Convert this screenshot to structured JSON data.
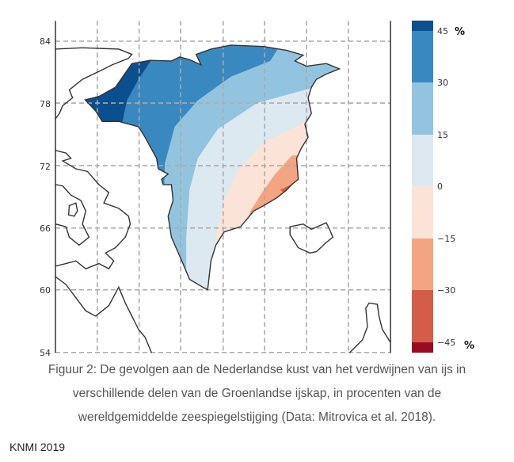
{
  "map": {
    "lat_ticks": [
      "84",
      "78",
      "72",
      "66",
      "60",
      "54"
    ],
    "colorbar": {
      "ticks": [
        "45",
        "30",
        "15",
        "0",
        "−15",
        "−30",
        "−45"
      ],
      "unit_top": "%",
      "unit_bottom": "%",
      "colors": [
        "#0b4f8f",
        "#3a88c0",
        "#93c4df",
        "#dde9f1",
        "#fbe4d7",
        "#f3a582",
        "#d45d4a",
        "#990b22"
      ]
    },
    "region_colors": {
      "above_45": "#0b4f8f",
      "30_45": "#3a88c0",
      "15_30": "#93c4df",
      "0_15": "#dde9f1",
      "minus15_0": "#fbe4d7",
      "minus30_minus15": "#f3a582",
      "minus45_minus30": "#d45d4a"
    }
  },
  "caption": {
    "line1": "Figuur 2: De gevolgen aan de Nederlandse kust van het verdwijnen van ijs in",
    "line2": "verschillende delen van de Groenlandse ijskap, in procenten van de",
    "line3": "wereldgemiddelde zeespiegelstijging (Data: Mitrovica et al. 2018)."
  },
  "credit": "KNMI 2019"
}
